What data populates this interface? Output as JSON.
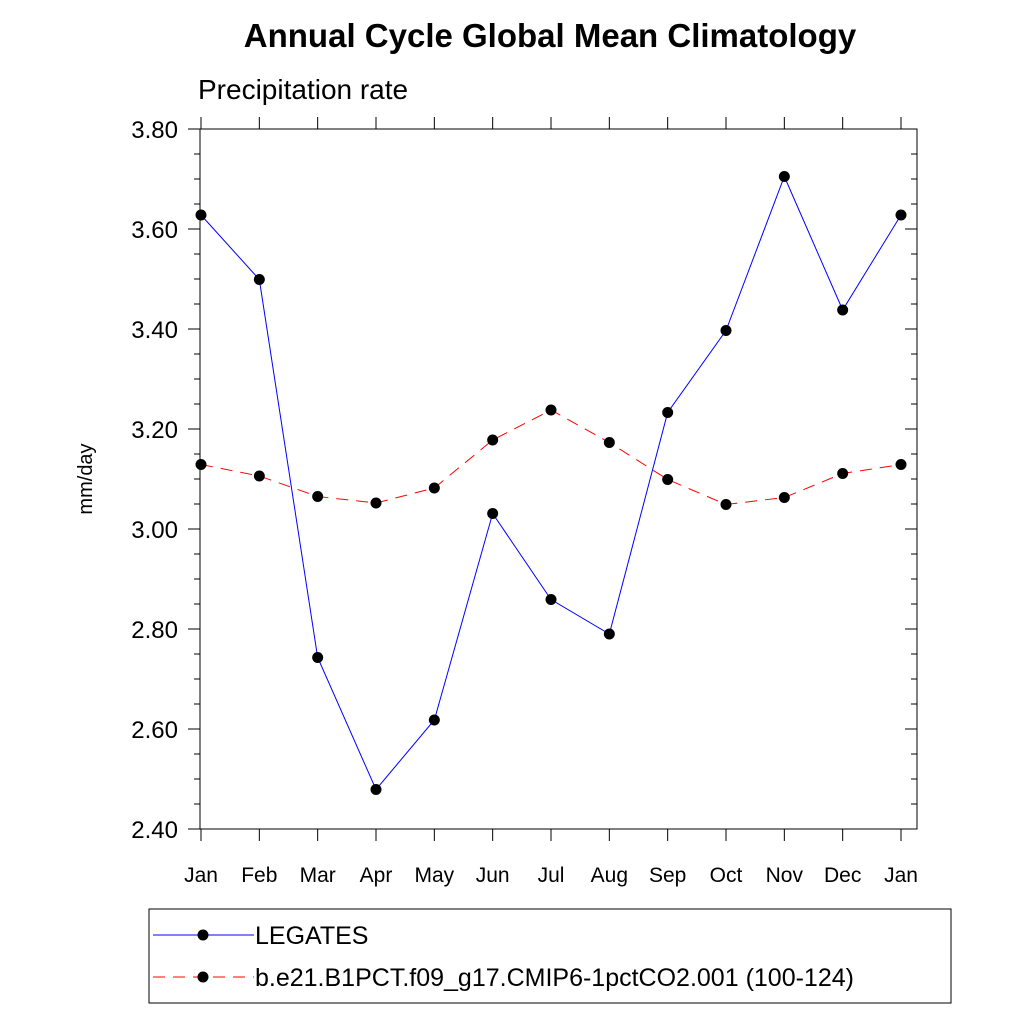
{
  "chart_data": {
    "type": "line",
    "title": "Annual Cycle Global Mean Climatology",
    "subtitle": "Precipitation rate",
    "xlabel": "",
    "ylabel": "mm/day",
    "categories": [
      "Jan",
      "Feb",
      "Mar",
      "Apr",
      "May",
      "Jun",
      "Jul",
      "Aug",
      "Sep",
      "Oct",
      "Nov",
      "Dec",
      "Jan"
    ],
    "ylim": [
      2.4,
      3.8
    ],
    "yticks": [
      "2.40",
      "2.60",
      "2.80",
      "3.00",
      "3.20",
      "3.40",
      "3.60",
      "3.80"
    ],
    "grid": false,
    "legend_position": "bottom",
    "series": [
      {
        "name": "LEGATES",
        "color": "#0000ff",
        "line_style": "solid",
        "marker": "circle",
        "values": [
          3.628,
          3.499,
          2.743,
          2.479,
          2.618,
          3.031,
          2.859,
          2.79,
          3.233,
          3.397,
          3.705,
          3.438,
          3.628
        ]
      },
      {
        "name": "b.e21.B1PCT.f09_g17.CMIP6-1pctCO2.001 (100-124)",
        "color": "#ff0000",
        "line_style": "dashed",
        "marker": "circle",
        "values": [
          3.129,
          3.106,
          3.065,
          3.052,
          3.082,
          3.178,
          3.238,
          3.173,
          3.099,
          3.049,
          3.063,
          3.111,
          3.129
        ]
      }
    ]
  }
}
